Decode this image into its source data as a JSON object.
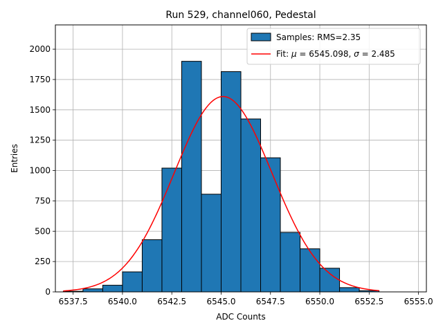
{
  "chart_data": {
    "type": "bar",
    "title": "Run 529, channel060, Pedestal",
    "xlabel": "ADC Counts",
    "ylabel": "Entries",
    "xlim": [
      6536.6,
      6555.4
    ],
    "ylim": [
      0,
      2200
    ],
    "grid": true,
    "legend_position": "top-right",
    "xticks": [
      "6537.5",
      "6540.0",
      "6542.5",
      "6545.0",
      "6547.5",
      "6550.0",
      "6552.5",
      "6555.0"
    ],
    "xtick_values": [
      6537.5,
      6540.0,
      6542.5,
      6545.0,
      6547.5,
      6550.0,
      6552.5,
      6555.0
    ],
    "yticks": [
      "0",
      "250",
      "500",
      "750",
      "1000",
      "1250",
      "1500",
      "1750",
      "2000"
    ],
    "ytick_values": [
      0,
      250,
      500,
      750,
      1000,
      1250,
      1500,
      1750,
      2000
    ],
    "histogram": {
      "name": "Samples: RMS=2.35",
      "color": "#1f77b4",
      "bin_edges": [
        6537,
        6538,
        6539,
        6540,
        6541,
        6542,
        6543,
        6544,
        6545,
        6546,
        6547,
        6548,
        6549,
        6550,
        6551,
        6552,
        6553
      ],
      "counts": [
        5,
        25,
        55,
        165,
        430,
        1020,
        1900,
        805,
        1815,
        1425,
        1105,
        490,
        355,
        195,
        35,
        10
      ]
    },
    "fit": {
      "name_prefix": "Fit: ",
      "name_mu": "μ",
      "name_eq1": " = 6545.098, ",
      "name_sigma": "σ",
      "name_eq2": " = 2.485",
      "color": "#ff0000",
      "mu": 6545.098,
      "sigma": 2.485,
      "amplitude": 1610,
      "x_range": [
        6537,
        6553
      ]
    }
  }
}
